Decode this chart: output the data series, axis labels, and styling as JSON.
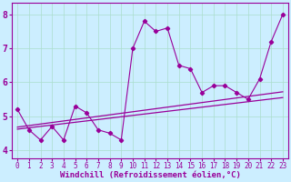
{
  "xlabel": "Windchill (Refroidissement éolien,°C)",
  "x_ticks": [
    0,
    1,
    2,
    3,
    4,
    5,
    6,
    7,
    8,
    9,
    10,
    11,
    12,
    13,
    14,
    15,
    16,
    17,
    18,
    19,
    20,
    21,
    22,
    23
  ],
  "ylim": [
    3.75,
    8.35
  ],
  "xlim": [
    -0.5,
    23.5
  ],
  "yticks": [
    4,
    5,
    6,
    7,
    8
  ],
  "line1_x": [
    0,
    1,
    2,
    3,
    4,
    5,
    6,
    7,
    8,
    9,
    10,
    11,
    12,
    13,
    14,
    15,
    16,
    17,
    18,
    19,
    20,
    21,
    22,
    23
  ],
  "line1_y": [
    5.2,
    4.6,
    4.3,
    4.7,
    4.3,
    5.3,
    5.1,
    4.6,
    4.5,
    4.3,
    7.0,
    7.8,
    7.5,
    7.6,
    6.5,
    6.4,
    5.7,
    5.9,
    5.9,
    5.7,
    5.5,
    6.1,
    7.2,
    8.0
  ],
  "line2_x": [
    0,
    23
  ],
  "line2_y": [
    4.62,
    5.55
  ],
  "line3_x": [
    0,
    23
  ],
  "line3_y": [
    4.68,
    5.72
  ],
  "color": "#990099",
  "bg_color": "#cceeff",
  "grid_color": "#aaddcc",
  "xlabel_fontsize": 6.5,
  "tick_fontsize": 5.5
}
